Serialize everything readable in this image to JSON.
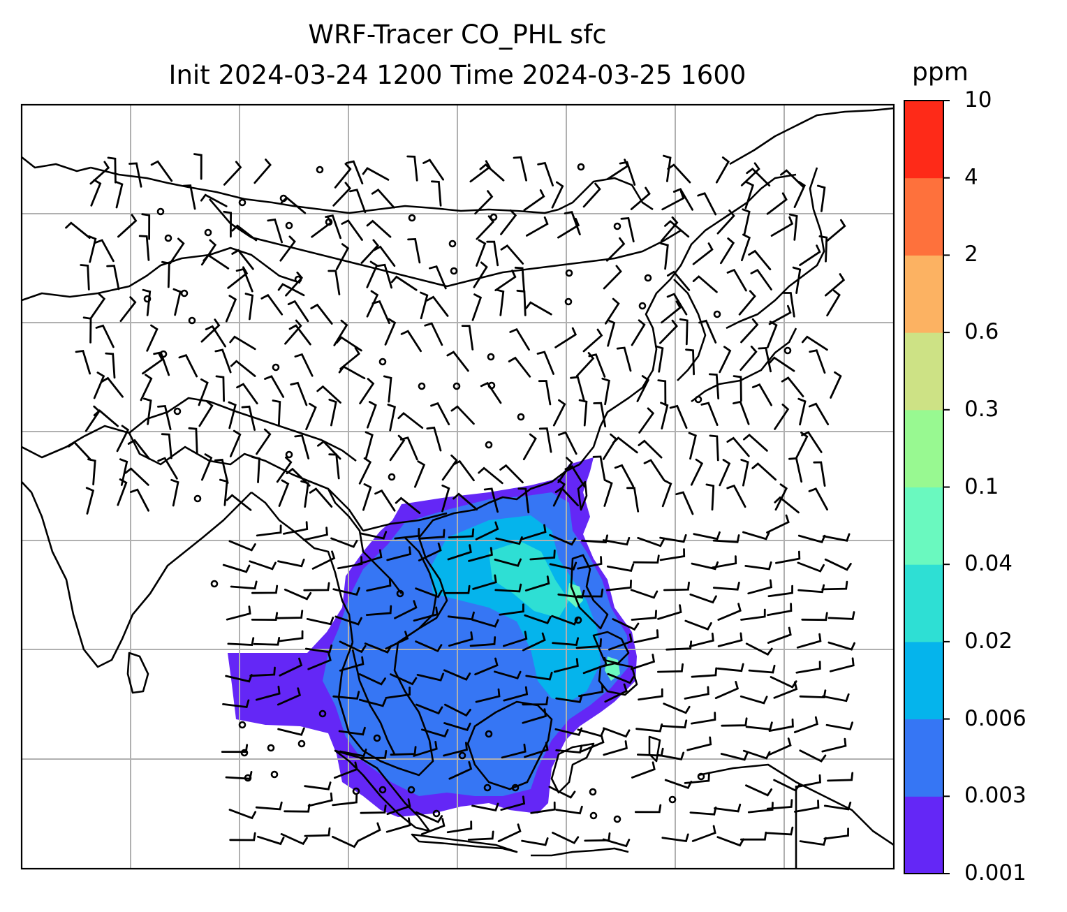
{
  "title": {
    "line1": "WRF-Tracer CO_PHL sfc",
    "line2": "Init 2024-03-24 1200 Time 2024-03-25 1600"
  },
  "colorbar": {
    "unit": "ppm",
    "levels": [
      "0.001",
      "0.003",
      "0.006",
      "0.02",
      "0.04",
      "0.1",
      "0.3",
      "0.6",
      "2",
      "4",
      "10"
    ],
    "colors": [
      "#6427f6",
      "#3676f4",
      "#05b4ec",
      "#2edfd4",
      "#6af9bf",
      "#98f991",
      "#cde285",
      "#fcb262",
      "#fe713c",
      "#fe2a18"
    ]
  },
  "map": {
    "field": "CO_PHL tracer concentration (surface)",
    "land_outline_color": "#000000",
    "gridline_color": "#b0b0b0",
    "wind_barb_color": "#000000"
  }
}
